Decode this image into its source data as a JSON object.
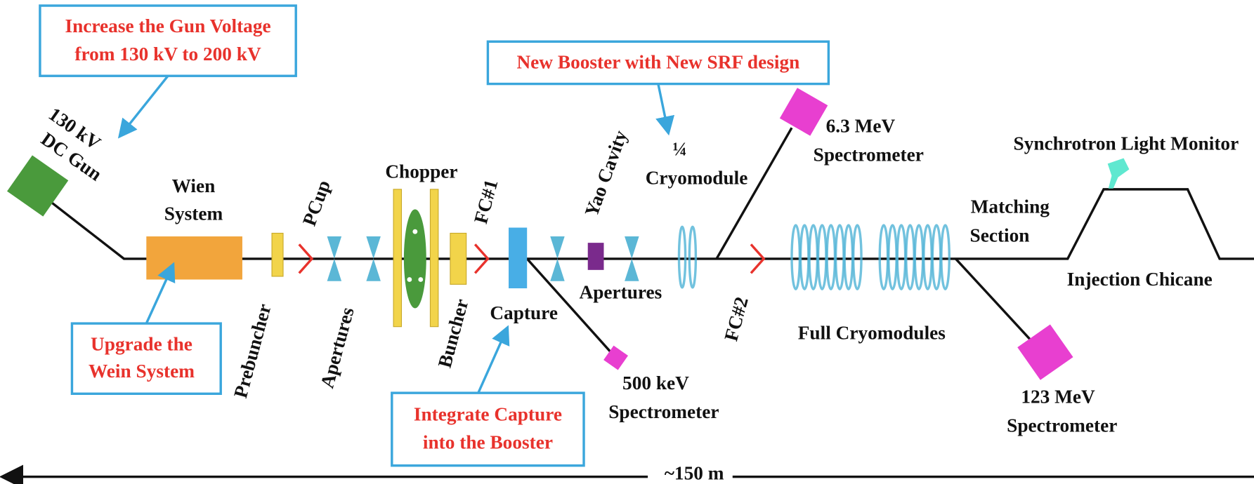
{
  "callouts": [
    {
      "lines": [
        "Increase the Gun Voltage",
        "from 130 kV to 200 kV"
      ]
    },
    {
      "lines": [
        "New Booster with New SRF design"
      ]
    },
    {
      "lines": [
        "Upgrade the",
        "Wein System"
      ]
    },
    {
      "lines": [
        "Integrate Capture",
        "into the Booster"
      ]
    }
  ],
  "labels": {
    "gun": [
      "130 kV",
      "DC Gun"
    ],
    "wien": [
      "Wien",
      "System"
    ],
    "pcup": "PCup",
    "prebuncher": "Prebuncher",
    "apertures1": "Apertures",
    "chopper": "Chopper",
    "buncher": "Buncher",
    "fc1": "FC#1",
    "capture": "Capture",
    "yao": "Yao Cavity",
    "apertures2": "Apertures",
    "quarter": [
      "¼",
      "Cryomodule"
    ],
    "spec63": [
      "6.3 MeV",
      "Spectrometer"
    ],
    "fc2": "FC#2",
    "full": "Full Cryomodules",
    "spec500": [
      "500 keV",
      "Spectrometer"
    ],
    "slm": "Synchrotron Light Monitor",
    "matching": [
      "Matching",
      "Section"
    ],
    "chicane": "Injection Chicane",
    "spec123": [
      "123 MeV",
      "Spectrometer"
    ],
    "length": "~150 m"
  }
}
